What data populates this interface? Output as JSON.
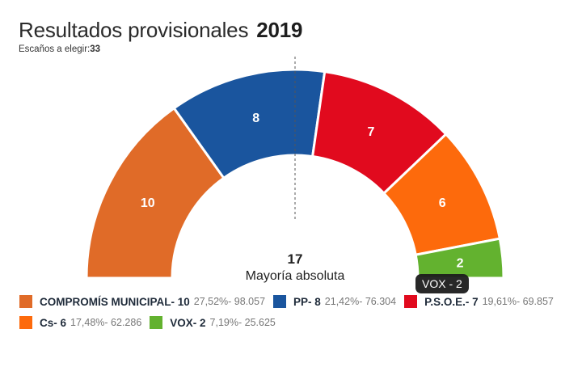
{
  "header": {
    "title": "Resultados provisionales",
    "year": "2019",
    "subtitle_label": "Escaños a elegir:",
    "subtitle_value": "33"
  },
  "center": {
    "majority_number": "17",
    "majority_label": "Mayoría absoluta"
  },
  "tooltip": {
    "text": "VOX - 2"
  },
  "chart_data": {
    "type": "pie",
    "subtype": "semicircle-donut (parliament)",
    "title": "Resultados provisionales 2019",
    "total_seats": 33,
    "majority": 17,
    "series": [
      {
        "name": "COMPROMÍS MUNICIPAL",
        "seats": 10,
        "percent": "27,52%",
        "votes": "98.057",
        "color": "#e06b28"
      },
      {
        "name": "PP",
        "seats": 8,
        "percent": "21,42%",
        "votes": "76.304",
        "color": "#1a559e"
      },
      {
        "name": "P.S.O.E.",
        "seats": 7,
        "percent": "19,61%",
        "votes": "69.857",
        "color": "#e10a1e"
      },
      {
        "name": "Cs",
        "seats": 6,
        "percent": "17,48%",
        "votes": "62.286",
        "color": "#fd6a0c"
      },
      {
        "name": "VOX",
        "seats": 2,
        "percent": "7,19%",
        "votes": "25.625",
        "color": "#63b22f"
      }
    ],
    "legend_position": "bottom"
  },
  "legend": {
    "rows": [
      [
        {
          "name": "COMPROMÍS MUNICIPAL- 10",
          "detail": "27,52%- 98.057",
          "color": "#e06b28"
        },
        {
          "name": "PP- 8",
          "detail": "21,42%- 76.304",
          "color": "#1a559e"
        },
        {
          "name": "P.S.O.E.- 7",
          "detail": "19,61%- 69.857",
          "color": "#e10a1e"
        }
      ],
      [
        {
          "name": "Cs- 6",
          "detail": "17,48%- 62.286",
          "color": "#fd6a0c"
        },
        {
          "name": "VOX- 2",
          "detail": "7,19%- 25.625",
          "color": "#63b22f"
        }
      ]
    ]
  }
}
